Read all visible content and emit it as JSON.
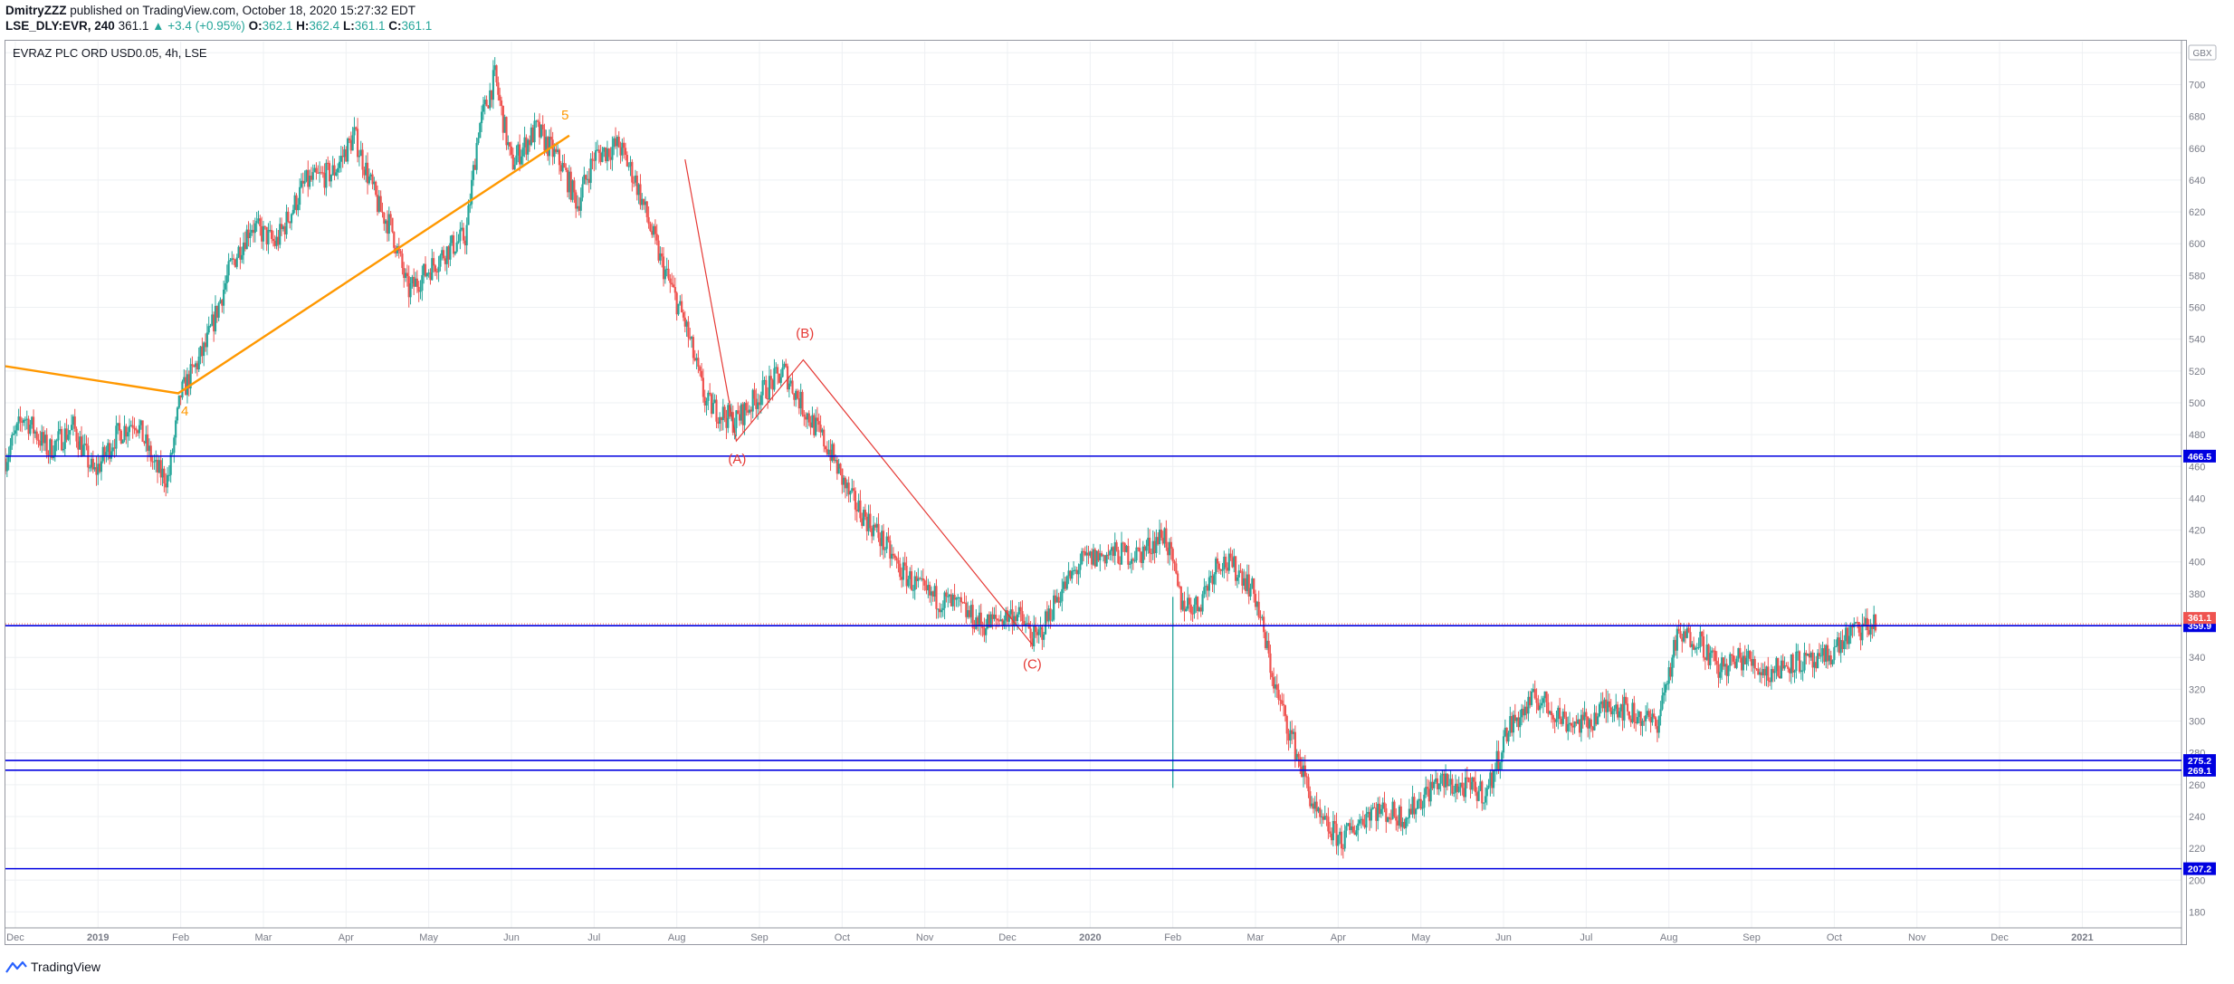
{
  "header": {
    "author": "DmitryZZZ",
    "published_text": "published on TradingView.com, October 18, 2020 15:27:32 EDT",
    "symbol_line": "LSE_DLY:EVR, 240",
    "last": "361.1",
    "change": "▲ +3.4 (+0.95%)",
    "o_label": "O:",
    "o_value": "362.1",
    "h_label": "H:",
    "h_value": "362.4",
    "l_label": "L:",
    "l_value": "361.1",
    "c_label": "C:",
    "c_value": "361.1"
  },
  "symbol_title": "EVRAZ PLC ORD USD0.05, 4h, LSE",
  "footer": {
    "brand": "TradingView"
  },
  "colors": {
    "up": "#26a69a",
    "down": "#ef5350",
    "hline": "#0000e0",
    "wave_orange": "#ff9800",
    "wave_red": "#e53935",
    "grid": "#eef0f3",
    "axis_text": "#787b86"
  },
  "chart_data": {
    "type": "candlestick",
    "title": "EVRAZ PLC ORD USD0.05, 4h, LSE",
    "currency": "GBX",
    "interval": "4h",
    "x_ticks": [
      "Dec",
      "2019",
      "Feb",
      "Mar",
      "Apr",
      "May",
      "Jun",
      "Jul",
      "Aug",
      "Sep",
      "Oct",
      "Nov",
      "Dec",
      "2020",
      "Feb",
      "Mar",
      "Apr",
      "May",
      "Jun",
      "Jul",
      "Aug",
      "Sep",
      "Oct",
      "Nov",
      "Dec",
      "2021"
    ],
    "x_tick_months": [
      -1,
      0,
      1,
      2,
      3,
      4,
      5,
      6,
      7,
      8,
      9,
      10,
      11,
      12,
      13,
      14,
      15,
      16,
      17,
      18,
      19,
      20,
      21,
      22,
      23,
      24
    ],
    "x_range_months": [
      -1.12,
      25.2
    ],
    "y_ticks": [
      180,
      200,
      220,
      240,
      260,
      280,
      300,
      320,
      340,
      360,
      380,
      400,
      420,
      440,
      460,
      480,
      500,
      520,
      540,
      560,
      580,
      600,
      620,
      640,
      660,
      680,
      700,
      720
    ],
    "ylim": [
      170,
      727
    ],
    "price_path": [
      [
        -1.12,
        465
      ],
      [
        -0.9,
        492
      ],
      [
        -0.6,
        470
      ],
      [
        -0.3,
        485
      ],
      [
        -0.05,
        455
      ],
      [
        0.2,
        478
      ],
      [
        0.45,
        490
      ],
      [
        0.7,
        458
      ],
      [
        0.85,
        452
      ],
      [
        1.0,
        505
      ],
      [
        1.3,
        535
      ],
      [
        1.6,
        585
      ],
      [
        1.85,
        612
      ],
      [
        2.15,
        600
      ],
      [
        2.5,
        638
      ],
      [
        2.85,
        645
      ],
      [
        3.1,
        668
      ],
      [
        3.4,
        622
      ],
      [
        3.55,
        610
      ],
      [
        3.75,
        570
      ],
      [
        4.2,
        595
      ],
      [
        4.45,
        605
      ],
      [
        4.6,
        672
      ],
      [
        4.8,
        705
      ],
      [
        5.0,
        650
      ],
      [
        5.3,
        672
      ],
      [
        5.6,
        650
      ],
      [
        5.8,
        625
      ],
      [
        6.0,
        655
      ],
      [
        6.3,
        662
      ],
      [
        6.5,
        640
      ],
      [
        6.8,
        590
      ],
      [
        7.1,
        550
      ],
      [
        7.35,
        500
      ],
      [
        7.7,
        488
      ],
      [
        8.0,
        505
      ],
      [
        8.3,
        520
      ],
      [
        8.55,
        495
      ],
      [
        8.85,
        470
      ],
      [
        9.1,
        440
      ],
      [
        9.4,
        420
      ],
      [
        9.7,
        395
      ],
      [
        10.0,
        380
      ],
      [
        10.4,
        372
      ],
      [
        10.7,
        360
      ],
      [
        11.1,
        368
      ],
      [
        11.35,
        350
      ],
      [
        11.6,
        378
      ],
      [
        11.9,
        400
      ],
      [
        12.2,
        405
      ],
      [
        12.6,
        405
      ],
      [
        12.9,
        418
      ],
      [
        13.1,
        375
      ],
      [
        13.3,
        372
      ],
      [
        13.55,
        402
      ],
      [
        13.85,
        392
      ],
      [
        14.0,
        378
      ],
      [
        14.25,
        318
      ],
      [
        14.5,
        280
      ],
      [
        14.75,
        238
      ],
      [
        15.05,
        225
      ],
      [
        15.4,
        245
      ],
      [
        15.8,
        240
      ],
      [
        16.2,
        262
      ],
      [
        16.5,
        258
      ],
      [
        16.8,
        255
      ],
      [
        17.05,
        295
      ],
      [
        17.4,
        315
      ],
      [
        17.75,
        300
      ],
      [
        18.0,
        298
      ],
      [
        18.3,
        312
      ],
      [
        18.55,
        305
      ],
      [
        18.85,
        298
      ],
      [
        19.1,
        352
      ],
      [
        19.35,
        353
      ],
      [
        19.6,
        332
      ],
      [
        19.9,
        340
      ],
      [
        20.2,
        330
      ],
      [
        20.5,
        338
      ],
      [
        20.8,
        335
      ],
      [
        21.2,
        355
      ],
      [
        21.5,
        361
      ]
    ],
    "spike_wick": {
      "month": 13.0,
      "low": 258,
      "high": 378
    },
    "horizontal_lines": [
      {
        "price": 466.5,
        "label": "466.5"
      },
      {
        "price": 359.9,
        "label": "359.9"
      },
      {
        "price": 275.2,
        "label": "275.2"
      },
      {
        "price": 269.1,
        "label": "269.1"
      },
      {
        "price": 207.2,
        "label": "207.2"
      }
    ],
    "last_price": {
      "price": 361.1,
      "label": "361.1"
    },
    "annotations": [
      {
        "text": "5",
        "month": 5.65,
        "price": 678,
        "color": "wave_orange"
      },
      {
        "text": "4",
        "month": 1.05,
        "price": 492,
        "color": "wave_orange"
      },
      {
        "text": "(A)",
        "month": 7.73,
        "price": 462,
        "color": "wave_red"
      },
      {
        "text": "(B)",
        "month": 8.55,
        "price": 541,
        "color": "wave_red"
      },
      {
        "text": "(C)",
        "month": 11.3,
        "price": 333,
        "color": "wave_red"
      }
    ],
    "trendlines": [
      {
        "color": "wave_orange",
        "points": [
          [
            -1.12,
            523
          ],
          [
            0.97,
            506
          ],
          [
            5.7,
            668
          ]
        ]
      },
      {
        "color": "wave_red",
        "points": [
          [
            7.1,
            653
          ],
          [
            7.72,
            476
          ],
          [
            8.53,
            527
          ],
          [
            11.3,
            348
          ]
        ]
      }
    ]
  }
}
